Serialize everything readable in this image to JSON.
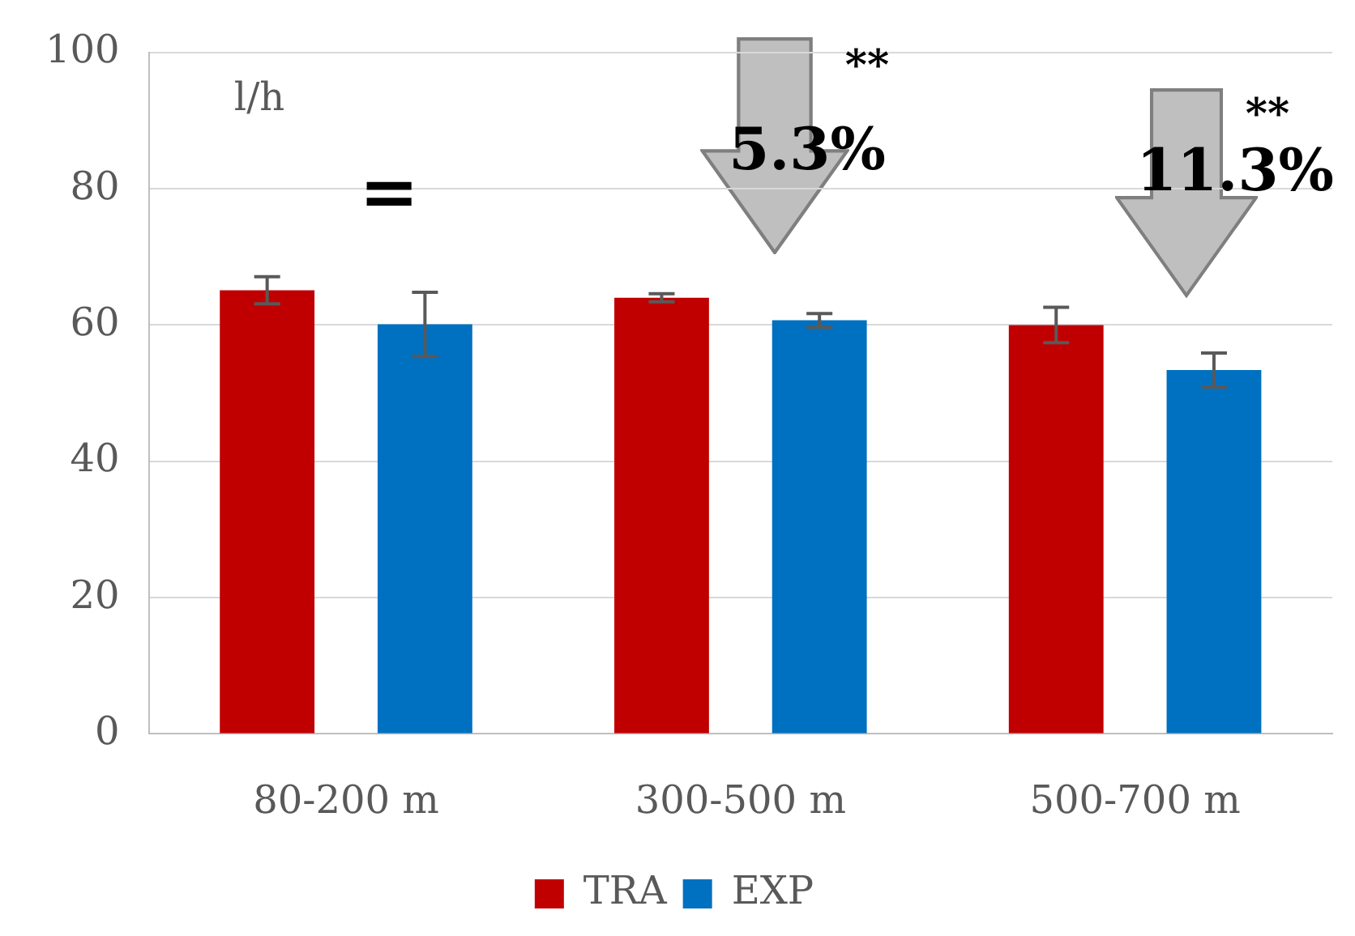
{
  "chart_data": {
    "type": "bar",
    "categories": [
      "80-200 m",
      "300-500 m",
      "500-700 m"
    ],
    "series": [
      {
        "name": "TRA",
        "color": "#c00000",
        "values": [
          65.1,
          64.0,
          60.0
        ],
        "errors": [
          2.0,
          0.6,
          2.6
        ]
      },
      {
        "name": "EXP",
        "color": "#0070c0",
        "values": [
          60.1,
          60.7,
          53.4
        ],
        "errors": [
          4.7,
          1.0,
          2.5
        ]
      }
    ],
    "ylim": [
      0,
      100
    ],
    "yticks": [
      0,
      20,
      40,
      60,
      80,
      100
    ],
    "grid": "y",
    "legend": "bottom",
    "annotations": [
      "l/h",
      "=",
      "5.3%",
      "**",
      "11.3%",
      "**"
    ]
  }
}
